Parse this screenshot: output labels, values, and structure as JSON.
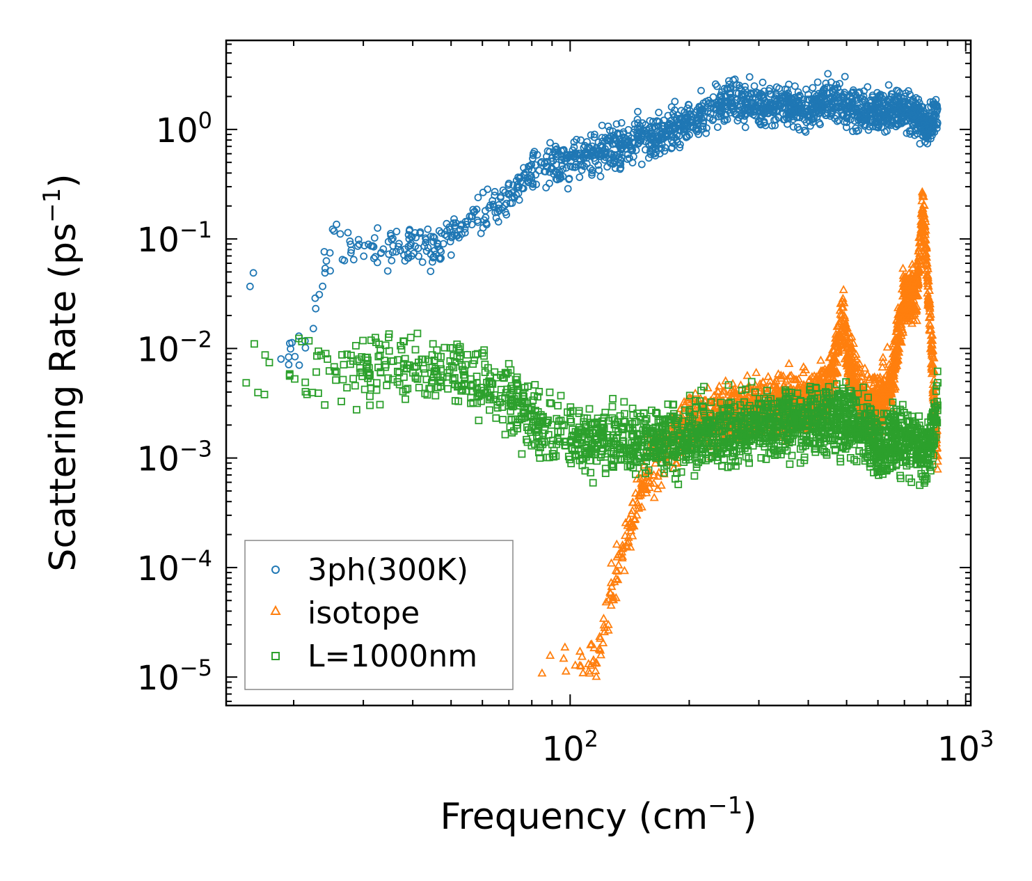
{
  "chart_data": {
    "type": "scatter",
    "title": "",
    "xlabel": "Frequency (cm",
    "xlabel_sup": "−1",
    "xlabel_end": ")",
    "ylabel": "Scattering Rate (ps",
    "ylabel_sup": "−1",
    "ylabel_end": ")",
    "xscale": "log",
    "yscale": "log",
    "xlim": [
      13.5,
      1030
    ],
    "ylim": [
      5.5e-06,
      6.5
    ],
    "x_tick_labels": [
      {
        "value": 100,
        "base": "10",
        "exp": "2"
      },
      {
        "value": 1000,
        "base": "10",
        "exp": "3"
      }
    ],
    "y_tick_labels": [
      {
        "value": 1,
        "base": "10",
        "exp": "0"
      },
      {
        "value": 0.1,
        "base": "10",
        "exp": "−1"
      },
      {
        "value": 0.01,
        "base": "10",
        "exp": "−2"
      },
      {
        "value": 0.001,
        "base": "10",
        "exp": "−3"
      },
      {
        "value": 0.0001,
        "base": "10",
        "exp": "−4"
      },
      {
        "value": 1e-05,
        "base": "10",
        "exp": "−5"
      }
    ],
    "legend_position": "lower-left",
    "series": [
      {
        "name": "3ph(300K)",
        "color": "#1f77b4",
        "marker": "circle",
        "envelope": [
          [
            14.5,
            0.023
          ],
          [
            16.5,
            0.06
          ],
          [
            18,
            0.009
          ],
          [
            22,
            0.012
          ],
          [
            25,
            0.1
          ],
          [
            30,
            0.07
          ],
          [
            35,
            0.08
          ],
          [
            40,
            0.09
          ],
          [
            45,
            0.08
          ],
          [
            50,
            0.11
          ],
          [
            60,
            0.17
          ],
          [
            70,
            0.25
          ],
          [
            80,
            0.4
          ],
          [
            90,
            0.45
          ],
          [
            100,
            0.5
          ],
          [
            110,
            0.55
          ],
          [
            120,
            0.65
          ],
          [
            130,
            0.7
          ],
          [
            150,
            0.8
          ],
          [
            170,
            0.9
          ],
          [
            200,
            1.2
          ],
          [
            230,
            1.5
          ],
          [
            250,
            1.8
          ],
          [
            280,
            1.7
          ],
          [
            300,
            1.6
          ],
          [
            350,
            1.7
          ],
          [
            400,
            1.5
          ],
          [
            450,
            1.8
          ],
          [
            500,
            1.7
          ],
          [
            550,
            1.5
          ],
          [
            620,
            1.5
          ],
          [
            700,
            1.6
          ],
          [
            780,
            1.2
          ],
          [
            800,
            1.0
          ],
          [
            850,
            1.4
          ]
        ],
        "spread_log10": 0.18
      },
      {
        "name": "isotope",
        "color": "#ff7f0e",
        "marker": "triangle",
        "envelope": [
          [
            82,
            1.2e-05
          ],
          [
            85,
            1.1e-05
          ],
          [
            100,
            1.5e-05
          ],
          [
            110,
            1.2e-05
          ],
          [
            120,
            2e-05
          ],
          [
            130,
            8e-05
          ],
          [
            140,
            0.0002
          ],
          [
            150,
            0.0005
          ],
          [
            160,
            0.0008
          ],
          [
            180,
            0.0015
          ],
          [
            200,
            0.002
          ],
          [
            250,
            0.0025
          ],
          [
            300,
            0.003
          ],
          [
            350,
            0.003
          ],
          [
            400,
            0.0035
          ],
          [
            450,
            0.004
          ],
          [
            490,
            0.02
          ],
          [
            500,
            0.01
          ],
          [
            550,
            0.003
          ],
          [
            600,
            0.003
          ],
          [
            650,
            0.005
          ],
          [
            700,
            0.03
          ],
          [
            750,
            0.03
          ],
          [
            780,
            0.2
          ],
          [
            800,
            0.05
          ],
          [
            850,
            0.001
          ]
        ],
        "spread_log10": 0.25
      },
      {
        "name": "L=1000nm",
        "color": "#2ca02c",
        "marker": "square",
        "envelope": [
          [
            14.5,
            0.0057
          ],
          [
            17,
            0.0062
          ],
          [
            20,
            0.0075
          ],
          [
            25,
            0.0065
          ],
          [
            30,
            0.0062
          ],
          [
            35,
            0.0065
          ],
          [
            40,
            0.0065
          ],
          [
            45,
            0.0062
          ],
          [
            50,
            0.006
          ],
          [
            60,
            0.005
          ],
          [
            70,
            0.0035
          ],
          [
            80,
            0.0022
          ],
          [
            90,
            0.0018
          ],
          [
            100,
            0.0016
          ],
          [
            110,
            0.0014
          ],
          [
            130,
            0.0015
          ],
          [
            150,
            0.0014
          ],
          [
            200,
            0.0016
          ],
          [
            250,
            0.0018
          ],
          [
            300,
            0.002
          ],
          [
            350,
            0.0022
          ],
          [
            400,
            0.002
          ],
          [
            450,
            0.0025
          ],
          [
            500,
            0.0022
          ],
          [
            550,
            0.002
          ],
          [
            600,
            0.0012
          ],
          [
            650,
            0.0015
          ],
          [
            700,
            0.0015
          ],
          [
            750,
            0.0013
          ],
          [
            800,
            0.001
          ],
          [
            850,
            0.003
          ]
        ],
        "spread_log10": 0.3
      }
    ]
  }
}
